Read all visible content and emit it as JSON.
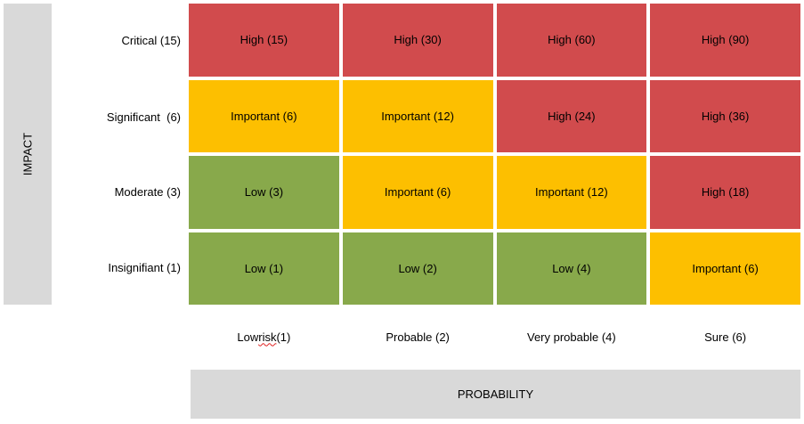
{
  "axes": {
    "y_title": "IMPACT",
    "x_title": "PROBABILITY"
  },
  "rows": [
    {
      "label": "Critical (15)"
    },
    {
      "label": "Significant  (6)"
    },
    {
      "label": "Moderate (3)"
    },
    {
      "label": "Insignifiant (1)"
    }
  ],
  "columns": [
    {
      "label_a": "Low ",
      "label_b": "risk",
      "label_c": " (1)"
    },
    {
      "label": "Probable (2)"
    },
    {
      "label": "Very probable (4)"
    },
    {
      "label": "Sure (6)"
    }
  ],
  "colors": {
    "high": "#d14b4d",
    "important": "#fdbf00",
    "low": "#88a94b"
  },
  "cells": [
    [
      {
        "text": "High (15)",
        "level": "high"
      },
      {
        "text": "High (30)",
        "level": "high"
      },
      {
        "text": "High (60)",
        "level": "high"
      },
      {
        "text": "High (90)",
        "level": "high"
      }
    ],
    [
      {
        "text": "Important (6)",
        "level": "important"
      },
      {
        "text": "Important (12)",
        "level": "important"
      },
      {
        "text": "High (24)",
        "level": "high"
      },
      {
        "text": "High (36)",
        "level": "high"
      }
    ],
    [
      {
        "text": "Low (3)",
        "level": "low"
      },
      {
        "text": "Important (6)",
        "level": "important"
      },
      {
        "text": "Important (12)",
        "level": "important"
      },
      {
        "text": "High (18)",
        "level": "high"
      }
    ],
    [
      {
        "text": "Low (1)",
        "level": "low"
      },
      {
        "text": "Low (2)",
        "level": "low"
      },
      {
        "text": "Low (4)",
        "level": "low"
      },
      {
        "text": "Important (6)",
        "level": "important"
      }
    ]
  ]
}
